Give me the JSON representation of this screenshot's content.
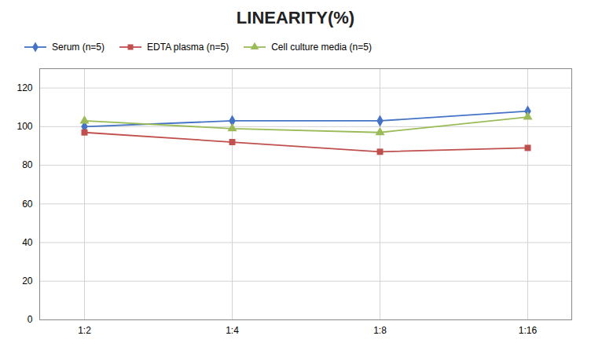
{
  "chart_data": {
    "type": "line",
    "title": "LINEARITY(%)",
    "categories": [
      "1:2",
      "1:4",
      "1:8",
      "1:16"
    ],
    "series": [
      {
        "name": "Serum (n=5)",
        "color": "#4472C4",
        "marker": "diamond",
        "values": [
          100,
          103,
          103,
          108
        ]
      },
      {
        "name": "EDTA plasma (n=5)",
        "color": "#C0504D",
        "marker": "square",
        "values": [
          97,
          92,
          87,
          89
        ]
      },
      {
        "name": "Cell culture media (n=5)",
        "color": "#9BBB59",
        "marker": "triangle",
        "values": [
          103,
          99,
          97,
          105
        ]
      }
    ],
    "ylim": [
      0,
      130
    ],
    "yticks": [
      0,
      20,
      40,
      60,
      80,
      100,
      120
    ],
    "grid": true,
    "legend": "upper left"
  }
}
